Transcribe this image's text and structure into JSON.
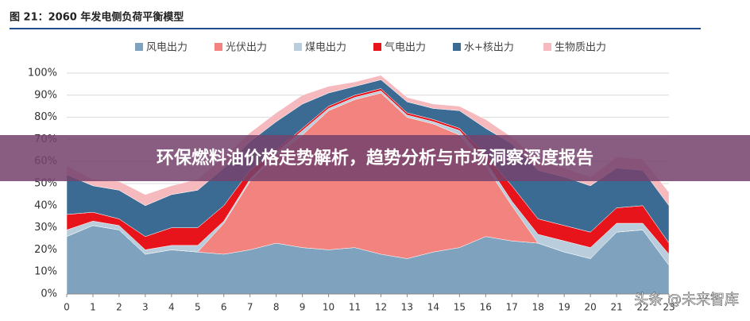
{
  "chart_data": {
    "type": "stacked-area",
    "title": "图 21：2060 年发电侧负荷平衡模型",
    "x": [
      0,
      1,
      2,
      3,
      4,
      5,
      6,
      7,
      8,
      9,
      10,
      11,
      12,
      13,
      14,
      15,
      16,
      17,
      18,
      19,
      20,
      21,
      22,
      23
    ],
    "xlim": [
      0,
      23
    ],
    "xticks": [
      0,
      1,
      2,
      3,
      4,
      5,
      6,
      7,
      8,
      9,
      10,
      11,
      12,
      13,
      14,
      15,
      16,
      17,
      18,
      19,
      20,
      21,
      22,
      23
    ],
    "ylim": [
      0,
      100
    ],
    "yticks": [
      {
        "value": 0,
        "label": "0%"
      },
      {
        "value": 10,
        "label": "10%"
      },
      {
        "value": 20,
        "label": "20%"
      },
      {
        "value": 30,
        "label": "30%"
      },
      {
        "value": 40,
        "label": "40%"
      },
      {
        "value": 50,
        "label": "50%"
      },
      {
        "value": 60,
        "label": "60%"
      },
      {
        "value": 70,
        "label": "70%"
      },
      {
        "value": 80,
        "label": "80%"
      },
      {
        "value": 90,
        "label": "90%"
      },
      {
        "value": 100,
        "label": "100%"
      }
    ],
    "grid": true,
    "series": [
      {
        "name": "风电出力",
        "color": "#7fa3bf",
        "values": [
          26,
          31,
          29,
          18,
          20,
          19,
          18,
          20,
          23,
          21,
          20,
          21,
          18,
          16,
          19,
          21,
          26,
          24,
          23,
          19,
          16,
          28,
          29,
          13
        ]
      },
      {
        "name": "光伏出力",
        "color": "#f2837f",
        "values": [
          0,
          0,
          0,
          0,
          0,
          0,
          14,
          31,
          40,
          51,
          63,
          67,
          73,
          64,
          58,
          51,
          32,
          16,
          0,
          0,
          0,
          0,
          0,
          0
        ]
      },
      {
        "name": "煤电出力",
        "color": "#b9cddc",
        "values": [
          3,
          2,
          2,
          2,
          2,
          3,
          1,
          1,
          1,
          2,
          1,
          1,
          1,
          1,
          1,
          2,
          2,
          2,
          4,
          5,
          5,
          4,
          3,
          5
        ]
      },
      {
        "name": "气电出力",
        "color": "#e8141b",
        "values": [
          7,
          4,
          3,
          6,
          8,
          8,
          7,
          4,
          1,
          1,
          1,
          1,
          1,
          1,
          1,
          1,
          3,
          7,
          7,
          7,
          7,
          7,
          8,
          5
        ]
      },
      {
        "name": "水+核出力",
        "color": "#3b6a93",
        "values": [
          18,
          12,
          13,
          14,
          15,
          17,
          17,
          13,
          13,
          11,
          6,
          4,
          4,
          5,
          5,
          8,
          12,
          19,
          22,
          22,
          21,
          18,
          16,
          17
        ]
      },
      {
        "name": "生物质出力",
        "color": "#f6b9bd",
        "values": [
          4,
          3,
          4,
          5,
          4,
          5,
          5,
          4,
          4,
          4,
          3,
          2,
          2,
          2,
          2,
          2,
          4,
          3,
          5,
          4,
          4,
          5,
          5,
          6
        ]
      }
    ]
  },
  "overlay": {
    "headline": "环保燃料油价格走势解析，趋势分析与市场洞察深度报告",
    "watermark": "头条 @未来智库"
  }
}
